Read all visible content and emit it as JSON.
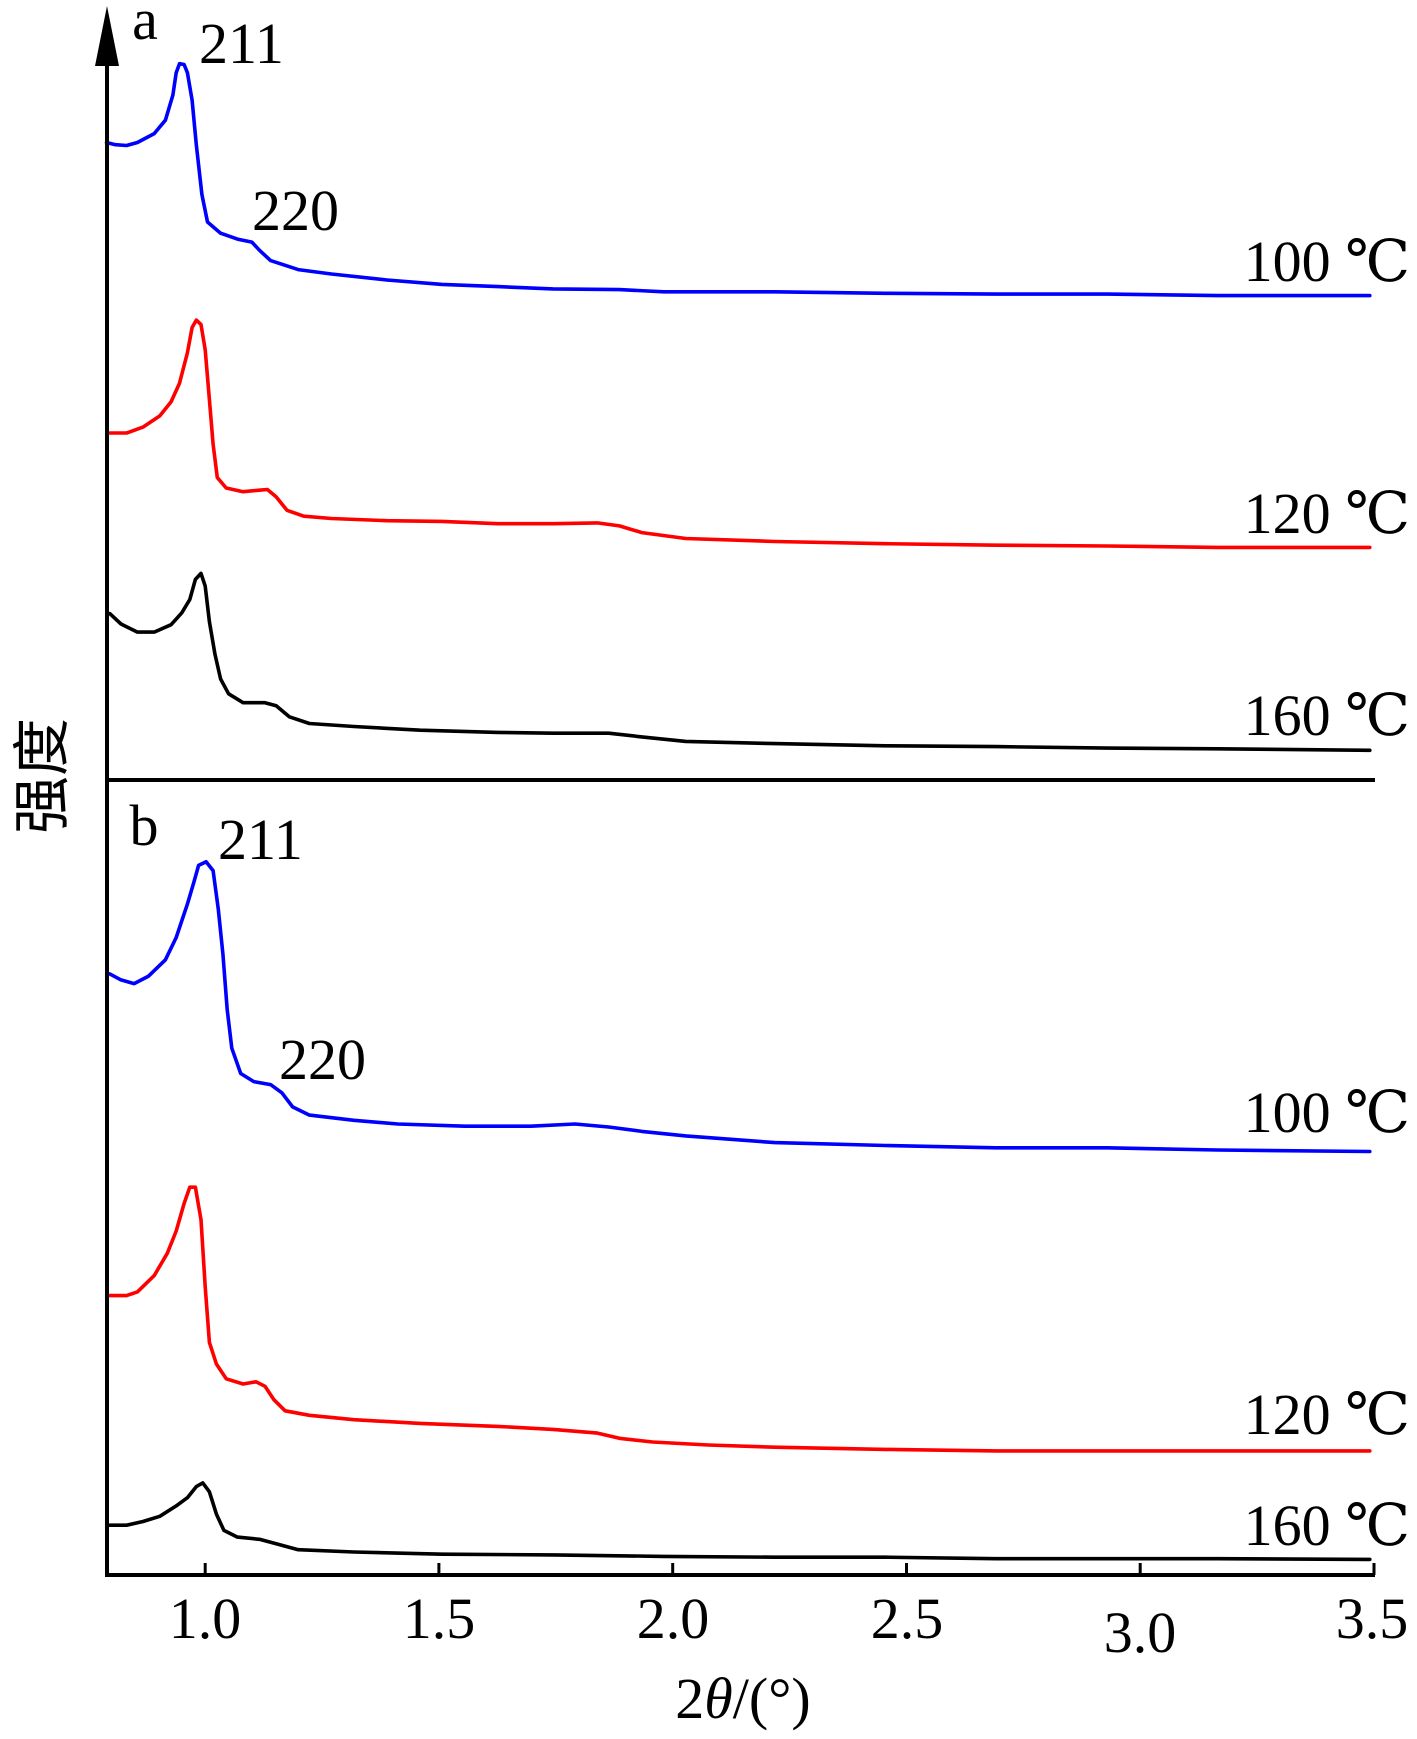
{
  "chart_data": {
    "type": "line",
    "xlabel": "2θ/(°)",
    "ylabel": "强度",
    "xlim": [
      0.79,
      3.5
    ],
    "xticks": [
      1.0,
      1.5,
      2.0,
      2.5,
      3.0,
      3.5
    ],
    "xtick_labels": [
      "1.0",
      "1.5",
      "2.0",
      "2.5",
      "3.0",
      "3.5"
    ],
    "grid": false,
    "panels": [
      {
        "label": "a",
        "ylim": [
          0,
          100
        ],
        "annotations": [
          {
            "text": "211"
          },
          {
            "text": "220"
          }
        ],
        "series": [
          {
            "name": "100 ℃",
            "color": "#0000ff",
            "x": [
              0.789,
              0.808,
              0.832,
              0.855,
              0.891,
              0.915,
              0.931,
              0.938,
              0.945,
              0.955,
              0.962,
              0.972,
              0.981,
              0.993,
              1.005,
              1.033,
              1.069,
              1.1,
              1.116,
              1.14,
              1.199,
              1.27,
              1.389,
              1.507,
              1.626,
              1.744,
              1.886,
              1.981,
              2.218,
              2.455,
              2.692,
              2.929,
              3.166,
              3.491
            ],
            "y": [
              85.8,
              85.5,
              85.4,
              85.8,
              87.0,
              88.8,
              92.2,
              95.2,
              96.4,
              96.3,
              95.2,
              91.5,
              85.5,
              78.8,
              75.1,
              73.6,
              72.8,
              72.4,
              71.3,
              69.9,
              68.7,
              68.1,
              67.3,
              66.7,
              66.4,
              66.1,
              66.0,
              65.7,
              65.7,
              65.5,
              65.4,
              65.4,
              65.2,
              65.2
            ]
          },
          {
            "name": "120 ℃",
            "color": "#ff0000",
            "x": [
              0.796,
              0.832,
              0.867,
              0.903,
              0.927,
              0.945,
              0.962,
              0.972,
              0.981,
              0.991,
              1.0,
              1.009,
              1.017,
              1.026,
              1.045,
              1.081,
              1.116,
              1.133,
              1.152,
              1.175,
              1.211,
              1.27,
              1.389,
              1.507,
              1.626,
              1.744,
              1.839,
              1.886,
              1.934,
              2.028,
              2.218,
              2.455,
              2.692,
              2.929,
              3.166,
              3.491
            ],
            "y": [
              46.7,
              46.7,
              47.5,
              49.0,
              50.9,
              53.4,
              57.5,
              60.9,
              61.9,
              61.3,
              57.9,
              51.2,
              45.2,
              40.7,
              39.3,
              38.8,
              39.0,
              39.1,
              38.1,
              36.3,
              35.5,
              35.2,
              34.9,
              34.8,
              34.5,
              34.5,
              34.6,
              34.2,
              33.3,
              32.5,
              32.1,
              31.8,
              31.6,
              31.5,
              31.3,
              31.3
            ]
          },
          {
            "name": "160 ℃",
            "color": "#000000",
            "x": [
              0.796,
              0.82,
              0.855,
              0.891,
              0.927,
              0.95,
              0.967,
              0.979,
              0.991,
              1.0,
              1.009,
              1.021,
              1.033,
              1.05,
              1.081,
              1.128,
              1.152,
              1.18,
              1.223,
              1.318,
              1.46,
              1.626,
              1.744,
              1.863,
              1.934,
              2.028,
              2.218,
              2.455,
              2.692,
              2.929,
              3.166,
              3.491
            ],
            "y": [
              22.4,
              21.0,
              19.9,
              19.9,
              20.9,
              22.5,
              24.3,
              27.0,
              27.8,
              26.1,
              21.3,
              16.9,
              13.6,
              11.6,
              10.4,
              10.4,
              10.0,
              8.5,
              7.6,
              7.2,
              6.7,
              6.4,
              6.3,
              6.3,
              5.8,
              5.2,
              4.9,
              4.6,
              4.5,
              4.3,
              4.2,
              4.0
            ]
          }
        ]
      },
      {
        "label": "b",
        "ylim": [
          0,
          100
        ],
        "annotations": [
          {
            "text": "211"
          },
          {
            "text": "220"
          }
        ],
        "series": [
          {
            "name": "100 ℃",
            "color": "#0000ff",
            "x": [
              0.796,
              0.82,
              0.848,
              0.879,
              0.915,
              0.938,
              0.962,
              0.976,
              0.986,
              1.002,
              1.017,
              1.028,
              1.038,
              1.047,
              1.057,
              1.076,
              1.104,
              1.14,
              1.164,
              1.187,
              1.223,
              1.318,
              1.412,
              1.555,
              1.697,
              1.791,
              1.863,
              1.934,
              2.028,
              2.218,
              2.455,
              2.692,
              2.929,
              3.166,
              3.491
            ],
            "y": [
              80.9,
              80.1,
              79.6,
              80.6,
              82.8,
              85.8,
              90.3,
              93.3,
              95.5,
              96.0,
              94.8,
              89.6,
              83.6,
              76.1,
              70.9,
              67.5,
              66.4,
              66.0,
              64.9,
              63.0,
              61.9,
              61.2,
              60.7,
              60.4,
              60.4,
              60.7,
              60.3,
              59.7,
              59.1,
              58.2,
              57.8,
              57.5,
              57.5,
              57.2,
              57.0
            ]
          },
          {
            "name": "120 ℃",
            "color": "#ff0000",
            "x": [
              0.796,
              0.832,
              0.855,
              0.891,
              0.919,
              0.938,
              0.955,
              0.967,
              0.979,
              0.991,
              1.0,
              1.009,
              1.024,
              1.045,
              1.081,
              1.109,
              1.128,
              1.147,
              1.171,
              1.223,
              1.318,
              1.46,
              1.626,
              1.744,
              1.839,
              1.886,
              1.957,
              2.076,
              2.218,
              2.455,
              2.692,
              2.929,
              3.166,
              3.491
            ],
            "y": [
              37.6,
              37.6,
              38.1,
              40.3,
              43.3,
              46.3,
              50.0,
              52.2,
              52.2,
              47.8,
              38.8,
              31.3,
              28.4,
              26.4,
              25.7,
              26.0,
              25.4,
              23.6,
              22.1,
              21.5,
              20.9,
              20.4,
              20.0,
              19.6,
              19.1,
              18.4,
              17.9,
              17.5,
              17.2,
              16.9,
              16.7,
              16.7,
              16.7,
              16.7
            ]
          },
          {
            "name": "160 ℃",
            "color": "#000000",
            "x": [
              0.796,
              0.832,
              0.867,
              0.903,
              0.938,
              0.962,
              0.981,
              0.995,
              1.009,
              1.024,
              1.04,
              1.069,
              1.116,
              1.152,
              1.199,
              1.318,
              1.507,
              1.744,
              1.981,
              2.218,
              2.455,
              2.692,
              2.929,
              3.166,
              3.491
            ],
            "y": [
              6.7,
              6.7,
              7.2,
              7.9,
              9.3,
              10.4,
              11.9,
              12.4,
              11.2,
              8.2,
              6.0,
              5.1,
              4.8,
              4.2,
              3.4,
              3.1,
              2.8,
              2.7,
              2.5,
              2.4,
              2.4,
              2.2,
              2.2,
              2.2,
              2.1
            ]
          }
        ]
      }
    ]
  }
}
